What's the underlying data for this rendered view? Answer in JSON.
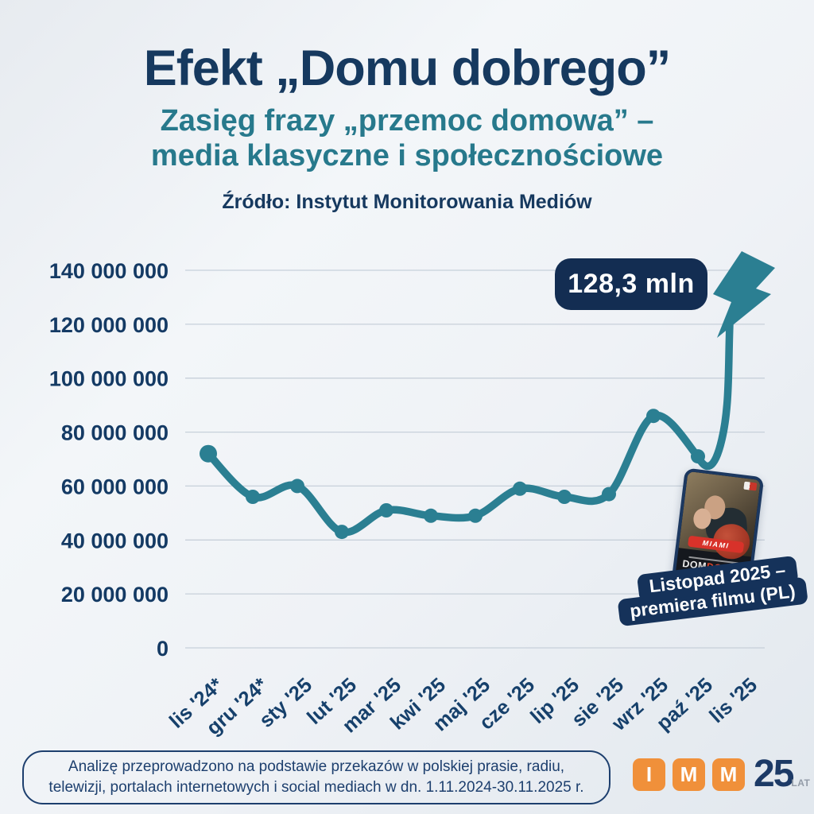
{
  "title": "Efekt „Domu dobrego”",
  "subtitle_line1": "Zasięg frazy „przemoc domowa” –",
  "subtitle_line2": "media klasyczne i społecznościowe",
  "source": "Źródło: Instytut Monitorowania Mediów",
  "chart_data": {
    "type": "line",
    "title": "Zasięg frazy „przemoc domowa” – media klasyczne i społecznościowe",
    "categories": [
      "lis '24*",
      "gru '24*",
      "sty '25",
      "lut '25",
      "mar '25",
      "kwi '25",
      "maj '25",
      "cze '25",
      "lip '25",
      "sie '25",
      "wrz '25",
      "paź '25",
      "lis '25"
    ],
    "values": [
      72000000,
      56000000,
      60000000,
      43000000,
      51000000,
      49000000,
      49000000,
      59000000,
      56000000,
      57000000,
      86000000,
      71000000,
      128300000
    ],
    "unit": "zasięg (liczba odbiorców)",
    "ylim": [
      0,
      140000000
    ],
    "ytick_interval": 20000000,
    "ytick_labels": [
      "140 000 000",
      "120 000 000",
      "100 000 000",
      "80 000 000",
      "60 000 000",
      "40 000 000",
      "20 000 000",
      "0"
    ],
    "grid": true,
    "legend": "none",
    "line_color": "#2b7f92",
    "peak_annotation": "128,3 mln"
  },
  "callout": {
    "value_label": "128,3 mln"
  },
  "premiere_label": {
    "line1": "Listopad 2025 –",
    "line2": "premiera filmu (PL)"
  },
  "poster": {
    "badge": "MIAMI",
    "title_part1": "DOM",
    "title_part2": "DOBRY"
  },
  "footer": {
    "line1": "Analizę przeprowadzono na podstawie przekazów w polskiej prasie, radiu,",
    "line2": "telewizji, portalach internetowych i social mediach w dn. 1.11.2024-30.11.2025 r."
  },
  "logo": {
    "letters": [
      "I",
      "M",
      "M"
    ],
    "anniversary_number": "25",
    "anniversary_unit": "LAT"
  },
  "colors": {
    "background": "#edf1f5",
    "title_navy": "#16395f",
    "subtitle_teal": "#27798c",
    "line_teal": "#2b7f92",
    "callout_bg": "#132d52",
    "gridline": "#c7d0da",
    "logo_orange": "#f0903a",
    "footer_navy": "#1d3f6e"
  }
}
